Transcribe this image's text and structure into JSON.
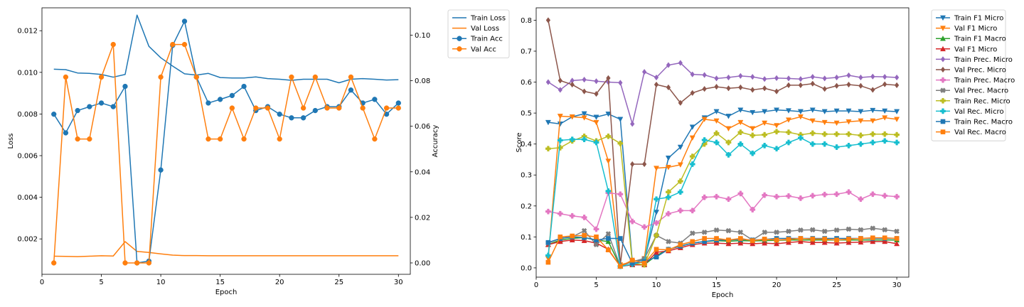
{
  "colors": {
    "blue": "#1f77b4",
    "orange": "#ff7f0e",
    "green": "#2ca02c",
    "red": "#d62728",
    "purple": "#9467bd",
    "brown": "#8c564b",
    "pink": "#e377c2",
    "gray": "#7f7f7f",
    "olive": "#bcbd22",
    "cyan": "#17becf"
  },
  "chart_data": [
    {
      "type": "line",
      "xlabel": "Epoch",
      "ylabel": "Loss",
      "y2label": "Accuracy",
      "x": [
        1,
        2,
        3,
        4,
        5,
        6,
        7,
        8,
        9,
        10,
        11,
        12,
        13,
        14,
        15,
        16,
        17,
        18,
        19,
        20,
        21,
        22,
        23,
        24,
        25,
        26,
        27,
        28,
        29,
        30
      ],
      "xlim": [
        0,
        31
      ],
      "ylim": [
        0.0003,
        0.0131
      ],
      "y2lim": [
        -0.005,
        0.112
      ],
      "xticks": [
        0,
        5,
        10,
        15,
        20,
        25,
        30
      ],
      "yticks": [
        0.002,
        0.004,
        0.006,
        0.008,
        0.01,
        0.012
      ],
      "ytick_labels": [
        "0.002",
        "0.004",
        "0.006",
        "0.008",
        "0.010",
        "0.012"
      ],
      "y2ticks": [
        0.0,
        0.02,
        0.04,
        0.06,
        0.08,
        0.1
      ],
      "y2tick_labels": [
        "0.00",
        "0.02",
        "0.04",
        "0.06",
        "0.08",
        "0.10"
      ],
      "legend": "outside-right",
      "grid": false,
      "series": [
        {
          "name": "Train Loss",
          "axis": "left",
          "marker": "none",
          "color": "#1f77b4",
          "values": [
            0.01015,
            0.01013,
            0.00997,
            0.00995,
            0.0099,
            0.00977,
            0.0099,
            0.01275,
            0.01125,
            0.0107,
            0.0103,
            0.00993,
            0.00987,
            0.00995,
            0.00975,
            0.00973,
            0.00973,
            0.00978,
            0.0097,
            0.00967,
            0.00962,
            0.00967,
            0.00967,
            0.00967,
            0.0095,
            0.00967,
            0.0097,
            0.00967,
            0.00963,
            0.00965
          ]
        },
        {
          "name": "Val Loss",
          "axis": "left",
          "marker": "none",
          "color": "#ff7f0e",
          "values": [
            0.00117,
            0.00116,
            0.00115,
            0.00117,
            0.00119,
            0.00118,
            0.00187,
            0.0014,
            0.00135,
            0.00128,
            0.00122,
            0.0012,
            0.0012,
            0.00119,
            0.00119,
            0.00119,
            0.00119,
            0.00119,
            0.00119,
            0.00119,
            0.00119,
            0.00119,
            0.00119,
            0.00119,
            0.00119,
            0.00119,
            0.00119,
            0.00119,
            0.00119,
            0.00119
          ]
        },
        {
          "name": "Train Acc",
          "axis": "right",
          "marker": "o",
          "color": "#1f77b4",
          "values": [
            0.0653,
            0.0571,
            0.0669,
            0.0686,
            0.0702,
            0.0686,
            0.0775,
            0.0,
            0.0008,
            0.0408,
            0.0955,
            0.1061,
            0.0816,
            0.0702,
            0.0718,
            0.0735,
            0.0775,
            0.0669,
            0.0686,
            0.0653,
            0.0637,
            0.0637,
            0.0669,
            0.0686,
            0.0686,
            0.0759,
            0.0702,
            0.0718,
            0.0653,
            0.0702
          ]
        },
        {
          "name": "Val Acc",
          "axis": "right",
          "marker": "o",
          "color": "#ff7f0e",
          "values": [
            0.0,
            0.0816,
            0.0544,
            0.0544,
            0.0816,
            0.0959,
            0.0,
            0.0,
            0.0,
            0.0816,
            0.0959,
            0.0959,
            0.0816,
            0.0544,
            0.0544,
            0.068,
            0.0544,
            0.068,
            0.068,
            0.0544,
            0.0816,
            0.068,
            0.0816,
            0.068,
            0.068,
            0.0816,
            0.068,
            0.0544,
            0.068,
            0.068
          ]
        }
      ]
    },
    {
      "type": "line",
      "xlabel": "Epoch",
      "ylabel": "Score",
      "x": [
        1,
        2,
        3,
        4,
        5,
        6,
        7,
        8,
        9,
        10,
        11,
        12,
        13,
        14,
        15,
        16,
        17,
        18,
        19,
        20,
        21,
        22,
        23,
        24,
        25,
        26,
        27,
        28,
        29,
        30
      ],
      "xlim": [
        0,
        31
      ],
      "ylim": [
        -0.03,
        0.84
      ],
      "xticks": [
        0,
        5,
        10,
        15,
        20,
        25,
        30
      ],
      "yticks": [
        0.0,
        0.1,
        0.2,
        0.3,
        0.4,
        0.5,
        0.6,
        0.7,
        0.8
      ],
      "ytick_labels": [
        "0.0",
        "0.1",
        "0.2",
        "0.3",
        "0.4",
        "0.5",
        "0.6",
        "0.7",
        "0.8"
      ],
      "legend": "outside-right",
      "grid": false,
      "series": [
        {
          "name": "Train F1 Micro",
          "marker": "v",
          "color": "#1f77b4",
          "values": [
            0.47,
            0.465,
            0.488,
            0.498,
            0.487,
            0.497,
            0.48,
            0.02,
            0.025,
            0.18,
            0.355,
            0.39,
            0.455,
            0.485,
            0.505,
            0.49,
            0.51,
            0.502,
            0.505,
            0.51,
            0.508,
            0.505,
            0.51,
            0.505,
            0.507,
            0.507,
            0.505,
            0.509,
            0.507,
            0.505
          ]
        },
        {
          "name": "Val F1 Micro",
          "marker": "v",
          "color": "#ff7f0e",
          "values": [
            0.03,
            0.49,
            0.488,
            0.485,
            0.47,
            0.345,
            0.01,
            0.02,
            0.03,
            0.322,
            0.325,
            0.333,
            0.42,
            0.48,
            0.475,
            0.45,
            0.47,
            0.45,
            0.468,
            0.46,
            0.478,
            0.488,
            0.475,
            0.47,
            0.468,
            0.472,
            0.475,
            0.475,
            0.485,
            0.48
          ]
        },
        {
          "name": "Train F1 Macro",
          "marker": "^",
          "color": "#2ca02c",
          "values": [
            0.075,
            0.09,
            0.095,
            0.098,
            0.09,
            0.085,
            0.005,
            0.01,
            0.01,
            0.04,
            0.06,
            0.07,
            0.08,
            0.085,
            0.088,
            0.086,
            0.088,
            0.087,
            0.088,
            0.089,
            0.09,
            0.09,
            0.09,
            0.09,
            0.09,
            0.09,
            0.09,
            0.09,
            0.09,
            0.09
          ]
        },
        {
          "name": "Val F1 Micro",
          "marker": "^",
          "color": "#d62728",
          "values": [
            0.075,
            0.085,
            0.09,
            0.088,
            0.08,
            0.06,
            0.005,
            0.01,
            0.01,
            0.05,
            0.055,
            0.065,
            0.075,
            0.08,
            0.08,
            0.078,
            0.08,
            0.078,
            0.08,
            0.078,
            0.082,
            0.085,
            0.082,
            0.082,
            0.08,
            0.082,
            0.083,
            0.085,
            0.085,
            0.078
          ]
        },
        {
          "name": "Train Prec. Micro",
          "marker": "D",
          "color": "#9467bd",
          "values": [
            0.6,
            0.575,
            0.605,
            0.608,
            0.603,
            0.6,
            0.598,
            0.465,
            0.633,
            0.615,
            0.655,
            0.662,
            0.625,
            0.623,
            0.612,
            0.615,
            0.62,
            0.617,
            0.61,
            0.613,
            0.612,
            0.61,
            0.617,
            0.612,
            0.615,
            0.622,
            0.615,
            0.618,
            0.617,
            0.615
          ]
        },
        {
          "name": "Val Prec. Micro",
          "marker": "D",
          "color": "#8c564b",
          "values": [
            0.8,
            0.605,
            0.592,
            0.57,
            0.562,
            0.613,
            0.01,
            0.335,
            0.335,
            0.592,
            0.583,
            0.533,
            0.565,
            0.578,
            0.585,
            0.58,
            0.583,
            0.575,
            0.58,
            0.57,
            0.59,
            0.59,
            0.595,
            0.578,
            0.588,
            0.592,
            0.588,
            0.575,
            0.593,
            0.59
          ]
        },
        {
          "name": "Train Prec. Macro",
          "marker": "P",
          "color": "#e377c2",
          "values": [
            0.182,
            0.175,
            0.168,
            0.163,
            0.125,
            0.242,
            0.238,
            0.15,
            0.132,
            0.145,
            0.175,
            0.185,
            0.185,
            0.228,
            0.23,
            0.222,
            0.24,
            0.188,
            0.235,
            0.23,
            0.232,
            0.225,
            0.233,
            0.237,
            0.238,
            0.245,
            0.222,
            0.238,
            0.233,
            0.23
          ]
        },
        {
          "name": "Val Prec. Macro",
          "marker": "X",
          "color": "#7f7f7f",
          "values": [
            0.08,
            0.095,
            0.1,
            0.12,
            0.075,
            0.11,
            0.005,
            0.02,
            0.03,
            0.105,
            0.085,
            0.08,
            0.112,
            0.115,
            0.122,
            0.12,
            0.115,
            0.09,
            0.115,
            0.115,
            0.118,
            0.122,
            0.123,
            0.118,
            0.122,
            0.125,
            0.123,
            0.128,
            0.123,
            0.118
          ]
        },
        {
          "name": "Train Rec. Micro",
          "marker": "P",
          "color": "#bcbd22",
          "values": [
            0.385,
            0.388,
            0.41,
            0.425,
            0.41,
            0.425,
            0.402,
            0.015,
            0.01,
            0.105,
            0.245,
            0.28,
            0.36,
            0.4,
            0.435,
            0.405,
            0.438,
            0.428,
            0.43,
            0.44,
            0.438,
            0.43,
            0.435,
            0.432,
            0.432,
            0.432,
            0.428,
            0.432,
            0.432,
            0.43
          ]
        },
        {
          "name": "Val Rec. Micro",
          "marker": "P",
          "color": "#17becf",
          "values": [
            0.04,
            0.412,
            0.415,
            0.415,
            0.405,
            0.248,
            0.005,
            0.012,
            0.02,
            0.222,
            0.228,
            0.245,
            0.335,
            0.413,
            0.405,
            0.365,
            0.4,
            0.37,
            0.395,
            0.385,
            0.405,
            0.42,
            0.4,
            0.4,
            0.39,
            0.395,
            0.4,
            0.405,
            0.41,
            0.405
          ]
        },
        {
          "name": "Train Rec. Macro",
          "marker": "s",
          "color": "#1f77b4",
          "values": [
            0.082,
            0.095,
            0.1,
            0.098,
            0.09,
            0.095,
            0.095,
            0.015,
            0.02,
            0.035,
            0.06,
            0.07,
            0.08,
            0.085,
            0.09,
            0.09,
            0.092,
            0.09,
            0.092,
            0.095,
            0.095,
            0.095,
            0.095,
            0.095,
            0.095,
            0.095,
            0.095,
            0.095,
            0.095,
            0.095
          ]
        },
        {
          "name": "Val Rec. Macro",
          "marker": "s",
          "color": "#ff7f0e",
          "values": [
            0.018,
            0.1,
            0.103,
            0.105,
            0.1,
            0.058,
            0.005,
            0.025,
            0.015,
            0.06,
            0.058,
            0.075,
            0.085,
            0.095,
            0.095,
            0.09,
            0.095,
            0.088,
            0.093,
            0.09,
            0.092,
            0.095,
            0.093,
            0.093,
            0.09,
            0.093,
            0.095,
            0.097,
            0.097,
            0.095
          ]
        }
      ]
    }
  ]
}
